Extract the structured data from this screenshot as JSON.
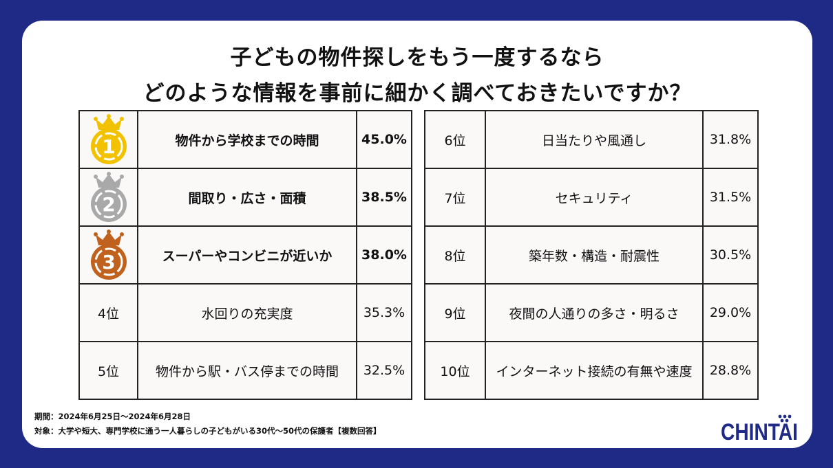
{
  "title": {
    "line1": "子どもの物件探しをもう一度するなら",
    "line2": "どのような情報を事前に細かく調べておきたいですか？"
  },
  "chart_data": {
    "type": "table",
    "left": [
      {
        "rank": "1",
        "label": "物件から学校までの時間",
        "value": "45.0%",
        "medal": "gold"
      },
      {
        "rank": "2",
        "label": "間取り・広さ・面積",
        "value": "38.5%",
        "medal": "silver"
      },
      {
        "rank": "3",
        "label": "スーパーやコンビニが近いか",
        "value": "38.0%",
        "medal": "bronze"
      },
      {
        "rank": "4位",
        "label": "水回りの充実度",
        "value": "35.3%"
      },
      {
        "rank": "5位",
        "label": "物件から駅・バス停までの時間",
        "value": "32.5%"
      }
    ],
    "right": [
      {
        "rank": "6位",
        "label": "日当たりや風通し",
        "value": "31.8%"
      },
      {
        "rank": "7位",
        "label": "セキュリティ",
        "value": "31.5%"
      },
      {
        "rank": "8位",
        "label": "築年数・構造・耐震性",
        "value": "30.5%"
      },
      {
        "rank": "9位",
        "label": "夜間の人通りの多さ・明るさ",
        "value": "29.0%"
      },
      {
        "rank": "10位",
        "label": "インターネット接続の有無や速度",
        "value": "28.8%"
      }
    ]
  },
  "medal_colors": {
    "gold": {
      "body": "#f2c200",
      "ring": "#ffffff"
    },
    "silver": {
      "body": "#a9a9a9",
      "ring": "#ffffff"
    },
    "bronze": {
      "body": "#c0621e",
      "ring": "#ffffff"
    }
  },
  "footnote": {
    "period": "期間：2024年6月25日～2024年6月28日",
    "target": "対象：大学や短大、専門学校に通う一人暮らしの子どもがいる30代～50代の保護者【複数回答】"
  },
  "logo": {
    "text": "CHINTAI",
    "color": "#1f2a86"
  }
}
